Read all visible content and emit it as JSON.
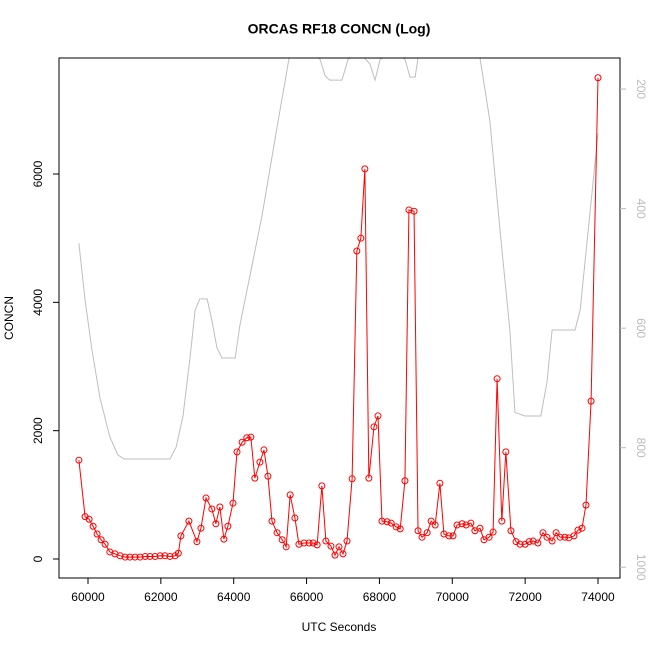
{
  "chart_data": {
    "type": "line",
    "title": "ORCAS RF18 CONCN (Log)",
    "x_label": "UTC Seconds",
    "y_label": "CONCN",
    "xlim": [
      59204,
      74604
    ],
    "xticks": [
      60000,
      62000,
      64000,
      66000,
      68000,
      70000,
      72000,
      74000
    ],
    "ylim": [
      -296,
      7808
    ],
    "yticks": [
      0,
      2000,
      4000,
      6000
    ],
    "y2lim": [
      1018,
      148
    ],
    "y2ticks": [
      200,
      400,
      600,
      800,
      1000
    ],
    "y2_color": "#bbbbbb",
    "series": [
      {
        "color": "#ff0000",
        "markers": true,
        "x": [
          59750,
          59920,
          60030,
          60140,
          60250,
          60360,
          60470,
          60600,
          60740,
          60880,
          61020,
          61150,
          61290,
          61430,
          61570,
          61700,
          61840,
          61980,
          62110,
          62250,
          62390,
          62480,
          62550,
          62770,
          62990,
          63100,
          63240,
          63400,
          63510,
          63620,
          63730,
          63840,
          63980,
          64090,
          64230,
          64360,
          64470,
          64580,
          64720,
          64830,
          64940,
          65050,
          65190,
          65330,
          65440,
          65550,
          65680,
          65790,
          65930,
          66070,
          66180,
          66290,
          66420,
          66530,
          66670,
          66780,
          66890,
          67000,
          67110,
          67250,
          67380,
          67490,
          67600,
          67710,
          67850,
          67960,
          68070,
          68210,
          68320,
          68460,
          68570,
          68700,
          68810,
          68950,
          69060,
          69170,
          69310,
          69420,
          69530,
          69660,
          69770,
          69910,
          70020,
          70130,
          70270,
          70380,
          70510,
          70620,
          70760,
          70870,
          71010,
          71120,
          71230,
          71360,
          71470,
          71610,
          71750,
          71860,
          72000,
          72110,
          72220,
          72350,
          72490,
          72600,
          72740,
          72850,
          72960,
          73090,
          73200,
          73340,
          73450,
          73560,
          73670,
          73810,
          74000
        ],
        "values": [
          1540,
          660,
          620,
          510,
          390,
          300,
          230,
          110,
          80,
          50,
          30,
          30,
          30,
          30,
          40,
          40,
          40,
          50,
          50,
          40,
          50,
          90,
          360,
          590,
          270,
          480,
          950,
          780,
          550,
          810,
          310,
          510,
          870,
          1670,
          1820,
          1890,
          1900,
          1260,
          1510,
          1700,
          1290,
          590,
          410,
          300,
          190,
          1000,
          640,
          230,
          250,
          250,
          250,
          220,
          1140,
          280,
          200,
          60,
          190,
          80,
          280,
          1250,
          4800,
          5000,
          6080,
          1260,
          2060,
          2230,
          590,
          580,
          560,
          500,
          470,
          1220,
          5440,
          5420,
          440,
          340,
          410,
          590,
          530,
          1180,
          390,
          360,
          360,
          530,
          550,
          530,
          560,
          440,
          480,
          300,
          340,
          420,
          2810,
          590,
          1670,
          440,
          270,
          230,
          230,
          270,
          280,
          250,
          410,
          340,
          280,
          410,
          340,
          340,
          330,
          360,
          450,
          480,
          840,
          2460,
          7500
        ]
      },
      {
        "color": "#bebebe",
        "axis": "y2",
        "x": [
          59750,
          59920,
          60110,
          60330,
          60600,
          60820,
          60990,
          62250,
          62420,
          62610,
          62800,
          62940,
          63070,
          63270,
          63400,
          63540,
          63680,
          64040,
          64170,
          64450,
          64780,
          65130,
          65520,
          65820,
          66370,
          66510,
          66640,
          66970,
          67140,
          67470,
          67740,
          67880,
          68020,
          68430,
          68700,
          68840,
          68980,
          69060,
          69940,
          70760,
          71030,
          71310,
          71580,
          71720,
          71990,
          72430,
          72600,
          72740,
          73370,
          73510,
          74000
        ],
        "values": [
          458,
          553,
          637,
          717,
          782,
          812,
          819,
          819,
          799,
          746,
          650,
          570,
          551,
          551,
          587,
          633,
          650,
          650,
          595,
          511,
          411,
          285,
          148,
          130,
          150,
          178,
          185,
          185,
          150,
          140,
          158,
          185,
          150,
          140,
          150,
          180,
          180,
          148,
          130,
          148,
          252,
          436,
          603,
          741,
          747,
          747,
          690,
          603,
          603,
          570,
          274
        ]
      }
    ]
  }
}
